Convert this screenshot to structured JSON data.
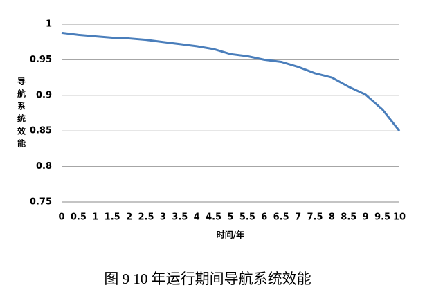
{
  "chart_data": {
    "type": "line",
    "x_label": "时间/年",
    "y_label": "导航系统效能",
    "x": [
      0,
      0.5,
      1,
      1.5,
      2,
      2.5,
      3,
      3.5,
      4,
      4.5,
      5,
      5.5,
      6,
      6.5,
      7,
      7.5,
      8,
      8.5,
      9,
      9.5,
      10
    ],
    "values": [
      0.988,
      0.985,
      0.983,
      0.981,
      0.98,
      0.978,
      0.975,
      0.972,
      0.969,
      0.965,
      0.958,
      0.955,
      0.95,
      0.947,
      0.94,
      0.931,
      0.925,
      0.912,
      0.901,
      0.88,
      0.85
    ],
    "color": "#4a7ebb",
    "xlim": [
      0,
      10
    ],
    "xticks": [
      0,
      0.5,
      1,
      1.5,
      2,
      2.5,
      3,
      3.5,
      4,
      4.5,
      5,
      5.5,
      6,
      6.5,
      7,
      7.5,
      8,
      8.5,
      9,
      9.5,
      10
    ],
    "ylim": [
      0.75,
      1
    ],
    "yticks": [
      0.75,
      0.8,
      0.85,
      0.9,
      0.95,
      1
    ],
    "grid": true
  },
  "caption": "图 9 10 年运行期间导航系统效能"
}
